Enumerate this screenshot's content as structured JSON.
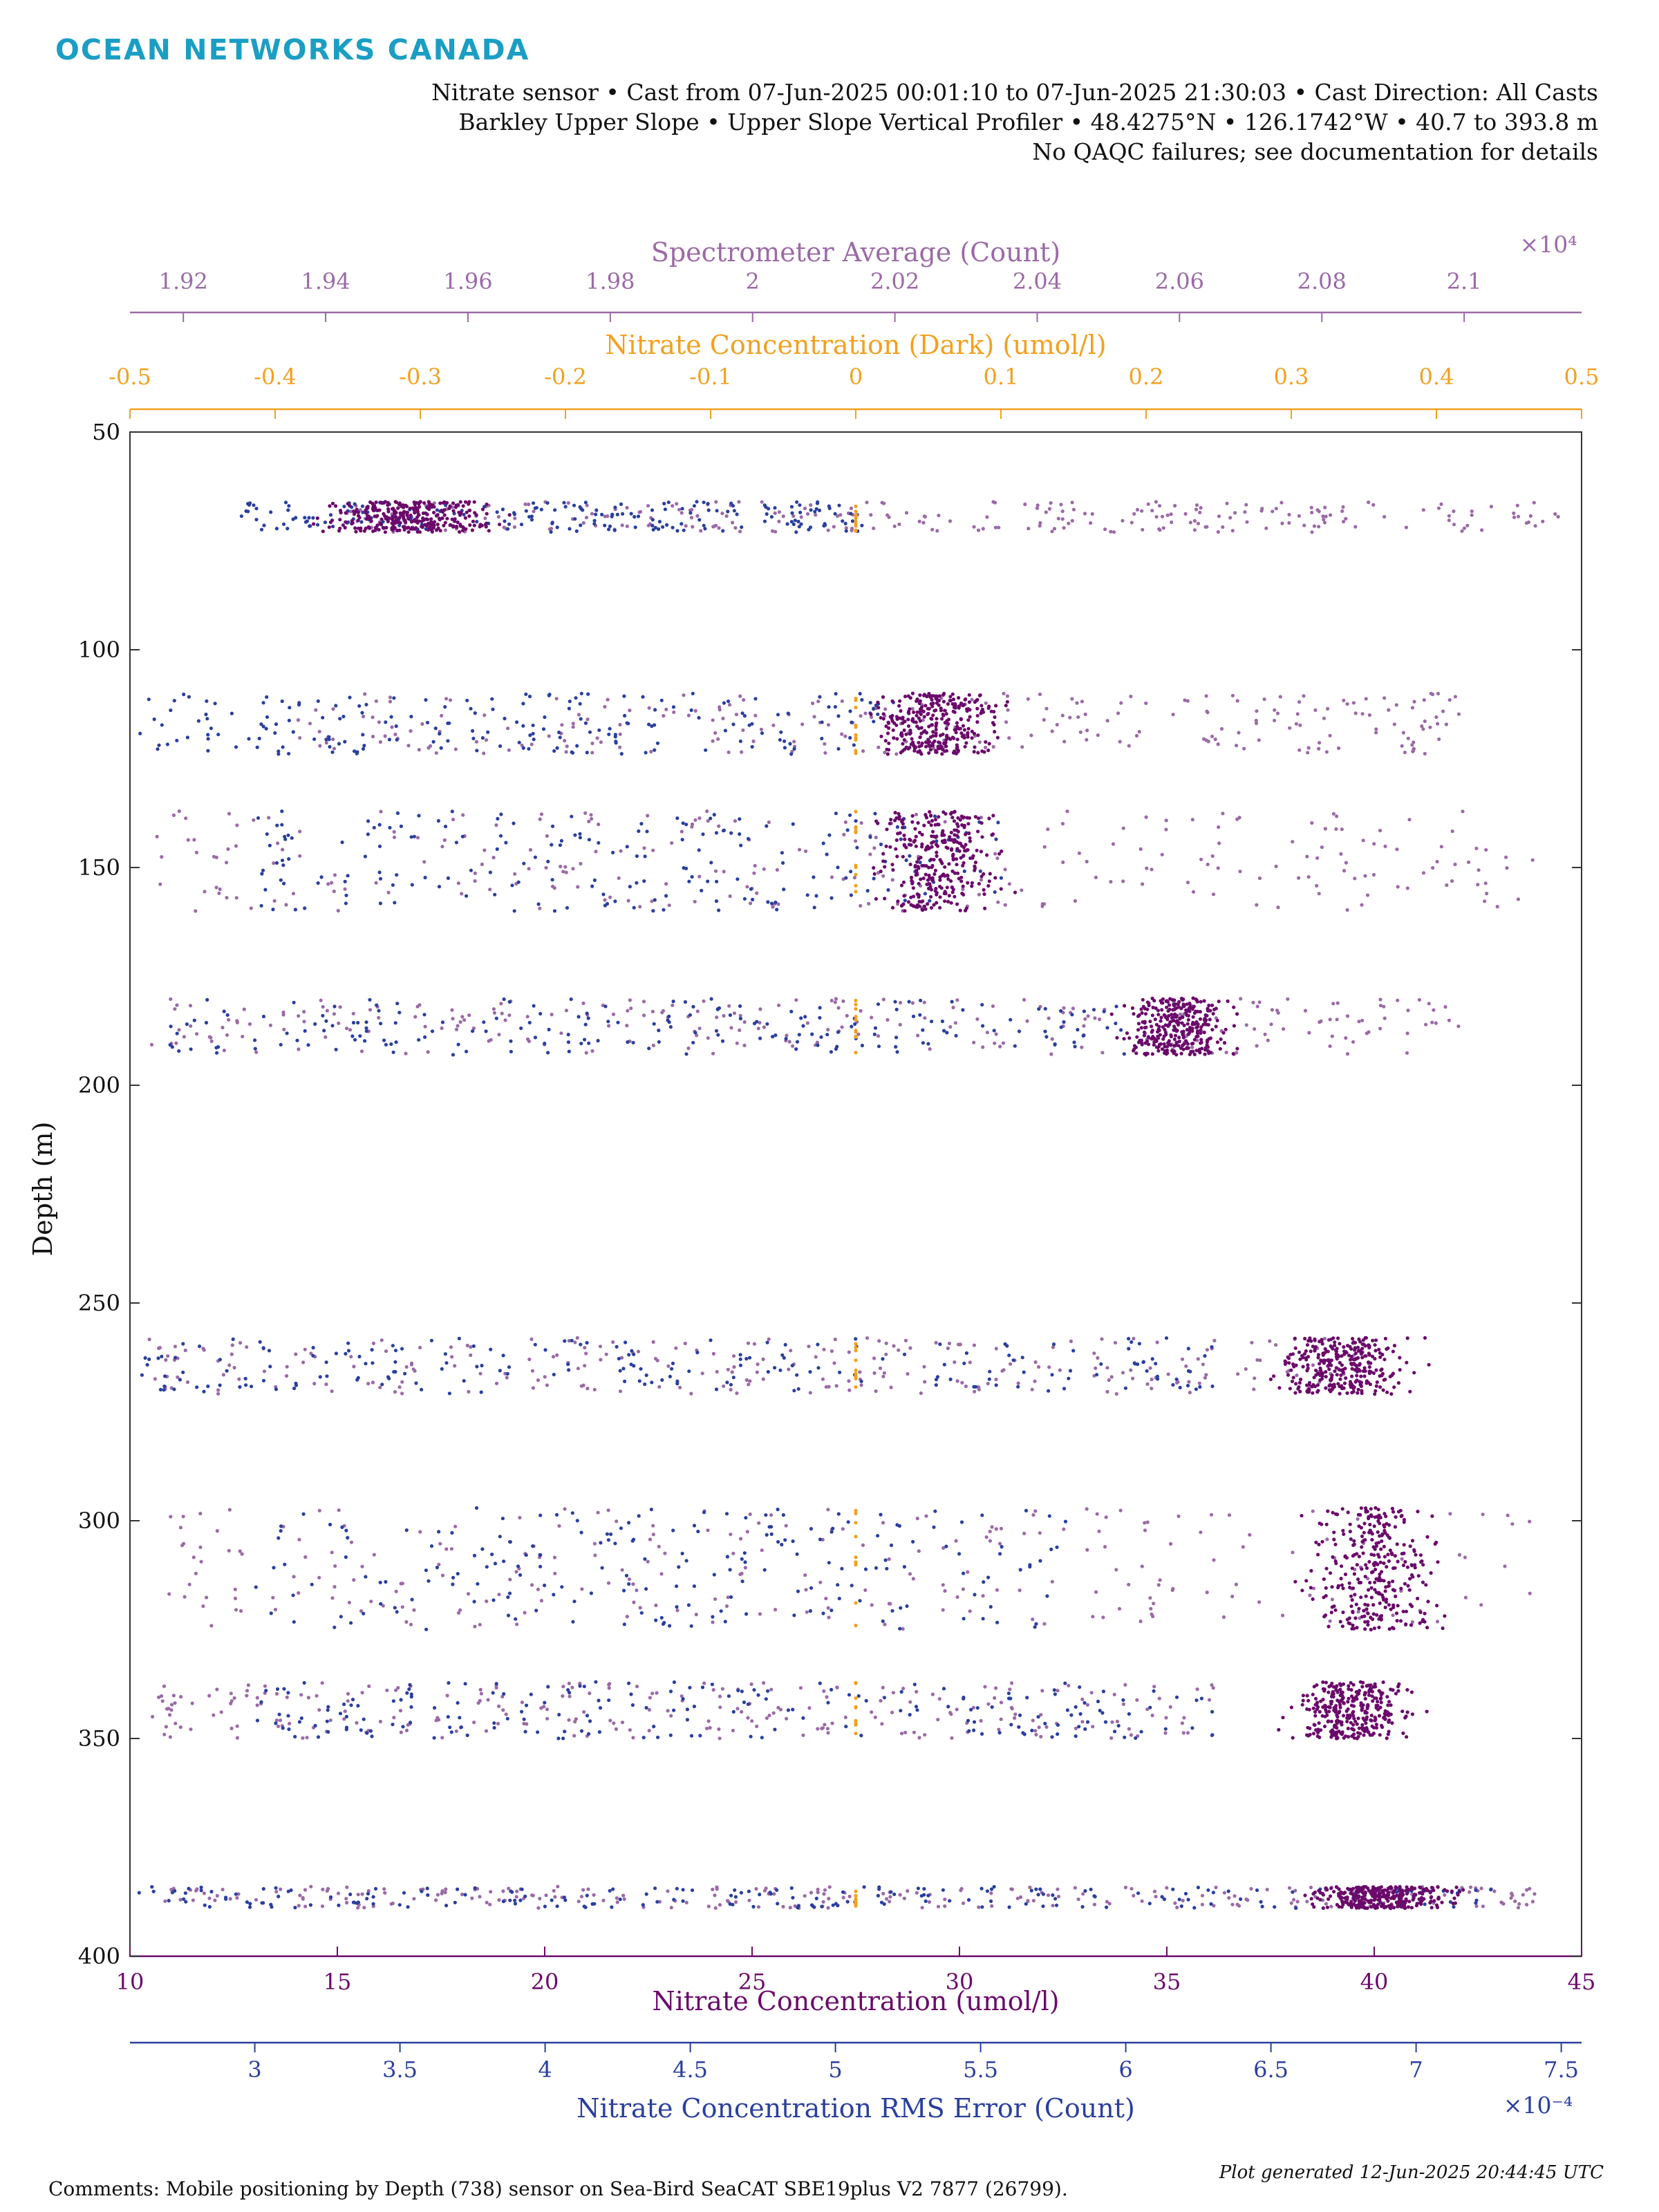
{
  "header": {
    "logo": "OCEAN NETWORKS CANADA",
    "line1": "Nitrate sensor • Cast from 07-Jun-2025 00:01:10 to 07-Jun-2025 21:30:03 • Cast Direction: All Casts",
    "line2": "Barkley Upper Slope • Upper Slope Vertical Profiler • 48.4275°N • 126.1742°W • 40.7 to 393.8 m",
    "line3": "No QAQC failures; see documentation for details"
  },
  "footer": {
    "comments": "Comments: Mobile positioning by Depth (738) sensor on Sea-Bird SeaCAT SBE19plus V2 7877 (26799).",
    "generated": "Plot generated 12-Jun-2025 20:44:45 UTC"
  },
  "colors": {
    "nitrate": "#6b0a6b",
    "dark": "#f2a01f",
    "spectrometer": "#9b6aa6",
    "rms": "#2a3f9e",
    "axis": "#333333"
  },
  "chart_data": {
    "type": "scatter",
    "ylabel": "Depth (m)",
    "ylim": [
      50,
      400
    ],
    "y_reversed": true,
    "yticks": [
      50,
      100,
      150,
      200,
      250,
      300,
      350,
      400
    ],
    "axes": [
      {
        "id": "spectrometer",
        "label": "Spectrometer Average (Count)",
        "multiplier": "×10⁴",
        "range": [
          1.9125,
          2.1165
        ],
        "ticks": [
          1.92,
          1.94,
          1.96,
          1.98,
          2,
          2.02,
          2.04,
          2.06,
          2.08,
          2.1
        ],
        "tick_labels": [
          "1.92",
          "1.94",
          "1.96",
          "1.98",
          "2",
          "2.02",
          "2.04",
          "2.06",
          "2.08",
          "2.1"
        ]
      },
      {
        "id": "dark",
        "label": "Nitrate Concentration (Dark) (umol/l)",
        "range": [
          -0.5,
          0.5
        ],
        "ticks": [
          -0.5,
          -0.4,
          -0.3,
          -0.2,
          -0.1,
          0,
          0.1,
          0.2,
          0.3,
          0.4,
          0.5
        ],
        "tick_labels": [
          "-0.5",
          "-0.4",
          "-0.3",
          "-0.2",
          "-0.1",
          "0",
          "0.1",
          "0.2",
          "0.3",
          "0.4",
          "0.5"
        ]
      },
      {
        "id": "nitrate",
        "label": "Nitrate Concentration (umol/l)",
        "range": [
          10,
          45
        ],
        "ticks": [
          10,
          15,
          20,
          25,
          30,
          35,
          40,
          45
        ],
        "tick_labels": [
          "10",
          "15",
          "20",
          "25",
          "30",
          "35",
          "40",
          "45"
        ]
      },
      {
        "id": "rms",
        "label": "Nitrate Concentration RMS Error (Count)",
        "multiplier": "×10⁻⁴",
        "range": [
          2.57,
          7.57
        ],
        "ticks": [
          3,
          3.5,
          4,
          4.5,
          5,
          5.5,
          6,
          6.5,
          7,
          7.5
        ],
        "tick_labels": [
          "3",
          "3.5",
          "4",
          "4.5",
          "5",
          "5.5",
          "6",
          "6.5",
          "7",
          "7.5"
        ]
      }
    ],
    "bands": [
      {
        "depth": [
          66,
          73
        ],
        "nitrate": [
          14,
          19.5
        ],
        "spectrometer": [
          1.942,
          2.114
        ],
        "rms": [
          2.95,
          5.1
        ],
        "dark": [
          0.0,
          0.0
        ]
      },
      {
        "depth": [
          110,
          124
        ],
        "nitrate": [
          27.5,
          31.5
        ],
        "spectrometer": [
          1.935,
          2.1
        ],
        "rms": [
          2.6,
          5.2
        ],
        "dark": [
          0.0,
          0.0
        ]
      },
      {
        "depth": [
          137,
          160
        ],
        "nitrate": [
          27.5,
          31.5
        ],
        "spectrometer": [
          1.915,
          2.11
        ],
        "rms": [
          3.0,
          5.6
        ],
        "dark": [
          0.0,
          0.0
        ]
      },
      {
        "depth": [
          180,
          193
        ],
        "nitrate": [
          33.5,
          37
        ],
        "spectrometer": [
          1.915,
          2.1
        ],
        "rms": [
          2.7,
          6.0
        ],
        "dark": [
          0.0,
          0.0
        ]
      },
      {
        "depth": [
          258,
          271
        ],
        "nitrate": [
          37,
          41.5
        ],
        "spectrometer": [
          1.915,
          2.085
        ],
        "rms": [
          2.6,
          6.3
        ],
        "dark": [
          0.0,
          0.0
        ]
      },
      {
        "depth": [
          297,
          325
        ],
        "nitrate": [
          38,
          42
        ],
        "spectrometer": [
          1.918,
          2.11
        ],
        "rms": [
          3.0,
          5.8
        ],
        "dark": [
          0.0,
          0.0
        ]
      },
      {
        "depth": [
          337,
          350
        ],
        "nitrate": [
          37.5,
          41.5
        ],
        "spectrometer": [
          1.915,
          2.065
        ],
        "rms": [
          3.0,
          6.3
        ],
        "dark": [
          0.0,
          0.0
        ]
      },
      {
        "depth": [
          384,
          389
        ],
        "nitrate": [
          38,
          42.5
        ],
        "spectrometer": [
          1.915,
          2.11
        ],
        "rms": [
          2.6,
          7.3
        ],
        "dark": [
          0.0,
          0.0
        ]
      }
    ]
  }
}
